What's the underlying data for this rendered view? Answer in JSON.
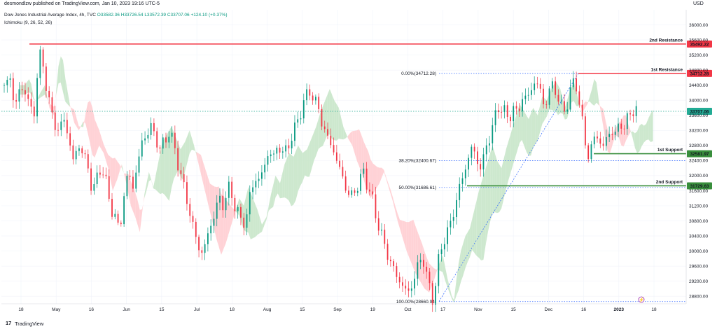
{
  "header": {
    "publisher": "desmondlzw published on TradingView.com, Jan 10, 2023 19:16 UTC-5",
    "currency": "USD"
  },
  "symbol": {
    "name": "Dow Jones Industrial Average Index, 4h, TVC",
    "ohlc": "O33582.36  H33726.54  L33572.39  C33707.06  +124.10 (+0.37%)"
  },
  "indicator": "Ichimoku (9, 26, 52, 26)",
  "footer": {
    "brand": "TradingView",
    "logo": "17"
  },
  "colors": {
    "up": "#089981",
    "down": "#f23645",
    "resistance": "#f23645",
    "support": "#388e3c",
    "cloud_bull": "#c8e6c9",
    "cloud_bear": "#ffcdd2",
    "fib": "#2962ff",
    "price_line": "#22ab94"
  },
  "chart_data": {
    "type": "candlestick",
    "title": "Dow Jones Industrial Average Index, 4h, TVC",
    "y_axis": {
      "ticks": [
        "36000.00",
        "35600.00",
        "35200.00",
        "34800.00",
        "34400.00",
        "34000.00",
        "33600.00",
        "33200.00",
        "32800.00",
        "32400.00",
        "32000.00",
        "31600.00",
        "31200.00",
        "30800.00",
        "30400.00",
        "30000.00",
        "29600.00",
        "29200.00",
        "28800.00"
      ],
      "range": [
        28600,
        36400
      ]
    },
    "x_axis": {
      "ticks": [
        "18",
        "May",
        "16",
        "Jun",
        "15",
        "Jul",
        "18",
        "Aug",
        "15",
        "Sep",
        "19",
        "Oct",
        "17",
        "Nov",
        "15",
        "Dec",
        "16",
        "2023",
        "18"
      ]
    },
    "levels": [
      {
        "name": "2nd Resistance",
        "value": 35492.22,
        "label": "35492.22",
        "type": "resistance"
      },
      {
        "name": "1st Resistance",
        "value": 34712.28,
        "label": "34712.28",
        "type": "resistance"
      },
      {
        "name": "1st Support",
        "value": 32581.97,
        "label": "32581.97",
        "type": "support"
      },
      {
        "name": "2nd Support",
        "value": 31729.63,
        "label": "31729.63",
        "type": "support"
      }
    ],
    "fibonacci": [
      {
        "label": "0.00%(34712.28)",
        "value": 34712.28
      },
      {
        "label": "38.20%(32400.67)",
        "value": 32400.67
      },
      {
        "label": "50.00%(31686.61)",
        "value": 31686.61
      },
      {
        "label": "100.00%(28660.94)",
        "value": 28660.94
      }
    ],
    "last_price": {
      "value": 33707.06,
      "label": "33707.06"
    },
    "price_path": [
      [
        0,
        34400
      ],
      [
        5,
        34600
      ],
      [
        9,
        33900
      ],
      [
        14,
        34200
      ],
      [
        18,
        34400
      ],
      [
        22,
        33800
      ],
      [
        26,
        33600
      ],
      [
        30,
        34900
      ],
      [
        33,
        35300
      ],
      [
        36,
        34600
      ],
      [
        40,
        33900
      ],
      [
        44,
        33400
      ],
      [
        48,
        33200
      ],
      [
        53,
        33500
      ],
      [
        57,
        33000
      ],
      [
        61,
        32400
      ],
      [
        66,
        32800
      ],
      [
        70,
        32600
      ],
      [
        74,
        32200
      ],
      [
        78,
        31600
      ],
      [
        82,
        31900
      ],
      [
        86,
        32300
      ],
      [
        90,
        31800
      ],
      [
        94,
        31200
      ],
      [
        98,
        30900
      ],
      [
        102,
        30500
      ],
      [
        106,
        31500
      ],
      [
        110,
        32100
      ],
      [
        114,
        31700
      ],
      [
        118,
        32300
      ],
      [
        122,
        32900
      ],
      [
        126,
        33100
      ],
      [
        130,
        33300
      ],
      [
        134,
        33000
      ],
      [
        138,
        32700
      ],
      [
        142,
        32900
      ],
      [
        146,
        33200
      ],
      [
        150,
        32800
      ],
      [
        154,
        32300
      ],
      [
        158,
        31800
      ],
      [
        162,
        31300
      ],
      [
        166,
        30800
      ],
      [
        170,
        30300
      ],
      [
        174,
        29900
      ],
      [
        178,
        30200
      ],
      [
        182,
        30600
      ],
      [
        186,
        31000
      ],
      [
        190,
        31400
      ],
      [
        194,
        31200
      ],
      [
        198,
        31700
      ],
      [
        202,
        31400
      ],
      [
        206,
        31100
      ],
      [
        210,
        30700
      ],
      [
        214,
        30900
      ],
      [
        218,
        31500
      ],
      [
        222,
        32000
      ],
      [
        226,
        31800
      ],
      [
        230,
        32300
      ],
      [
        234,
        32600
      ],
      [
        238,
        32500
      ],
      [
        242,
        32800
      ],
      [
        246,
        32600
      ],
      [
        250,
        32700
      ],
      [
        254,
        33000
      ],
      [
        258,
        33300
      ],
      [
        262,
        33700
      ],
      [
        266,
        34000
      ],
      [
        270,
        34300
      ],
      [
        274,
        34000
      ],
      [
        278,
        33800
      ],
      [
        282,
        33300
      ],
      [
        286,
        33000
      ],
      [
        290,
        32800
      ],
      [
        294,
        32400
      ],
      [
        298,
        32100
      ],
      [
        302,
        31700
      ],
      [
        306,
        31400
      ],
      [
        310,
        31600
      ],
      [
        314,
        31800
      ],
      [
        318,
        32100
      ],
      [
        322,
        31700
      ],
      [
        326,
        31300
      ],
      [
        330,
        30800
      ],
      [
        334,
        30400
      ],
      [
        338,
        30000
      ],
      [
        342,
        29700
      ],
      [
        346,
        29400
      ],
      [
        350,
        29200
      ],
      [
        354,
        29000
      ],
      [
        358,
        28900
      ],
      [
        362,
        29200
      ],
      [
        366,
        29600
      ],
      [
        370,
        29900
      ],
      [
        374,
        29300
      ],
      [
        378,
        28800
      ],
      [
        380,
        28700
      ],
      [
        383,
        29500
      ],
      [
        386,
        30000
      ],
      [
        390,
        30400
      ],
      [
        394,
        30600
      ],
      [
        398,
        31100
      ],
      [
        402,
        31600
      ],
      [
        406,
        32000
      ],
      [
        410,
        32400
      ],
      [
        414,
        32800
      ],
      [
        418,
        32400
      ],
      [
        422,
        32200
      ],
      [
        426,
        32700
      ],
      [
        430,
        33100
      ],
      [
        434,
        33500
      ],
      [
        438,
        33900
      ],
      [
        442,
        33700
      ],
      [
        446,
        33500
      ],
      [
        450,
        33800
      ],
      [
        454,
        33600
      ],
      [
        458,
        34100
      ],
      [
        462,
        34000
      ],
      [
        466,
        34300
      ],
      [
        470,
        34500
      ],
      [
        474,
        34300
      ],
      [
        478,
        33800
      ],
      [
        482,
        34200
      ],
      [
        486,
        34500
      ],
      [
        490,
        34000
      ],
      [
        494,
        33700
      ],
      [
        498,
        33900
      ],
      [
        502,
        34300
      ],
      [
        505,
        34700
      ],
      [
        508,
        34000
      ],
      [
        511,
        33500
      ],
      [
        514,
        32900
      ],
      [
        517,
        32500
      ],
      [
        520,
        32800
      ],
      [
        523,
        33100
      ],
      [
        526,
        33000
      ],
      [
        529,
        32700
      ],
      [
        533,
        33000
      ],
      [
        537,
        33200
      ],
      [
        541,
        33100
      ],
      [
        545,
        33400
      ],
      [
        549,
        33300
      ],
      [
        553,
        33600
      ],
      [
        557,
        33800
      ],
      [
        560,
        33700
      ]
    ]
  }
}
